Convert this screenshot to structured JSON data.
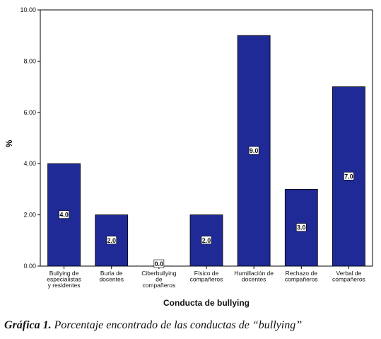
{
  "chart_data": {
    "type": "bar",
    "categories": [
      [
        "Bullying de",
        "especialistas",
        "y residentes"
      ],
      [
        "Burla de",
        "docentes"
      ],
      [
        "Ciberbullying",
        "de",
        "compañeros"
      ],
      [
        "Físico de",
        "compañeros"
      ],
      [
        "Humillación de",
        "docentes"
      ],
      [
        "Rechazo de",
        "compañeros"
      ],
      [
        "Verbal de",
        "compañeros"
      ]
    ],
    "values": [
      4,
      2,
      0,
      2,
      9,
      3,
      7
    ],
    "data_labels": [
      "4.0",
      "2.0",
      "0.0",
      "2.0",
      "9.0",
      "3.0",
      "7.0"
    ],
    "xlabel": "Conducta de bullying",
    "ylabel": "%",
    "ylim": [
      0,
      10
    ],
    "yticks": [
      "0.00",
      "2.00",
      "4.00",
      "6.00",
      "8.00",
      "10.00"
    ],
    "bar_color": "#1f2a96",
    "grid": false
  },
  "caption": {
    "lead": "Gráfica 1.",
    "text": " Porcentaje encontrado de las conductas de “bullying”"
  }
}
